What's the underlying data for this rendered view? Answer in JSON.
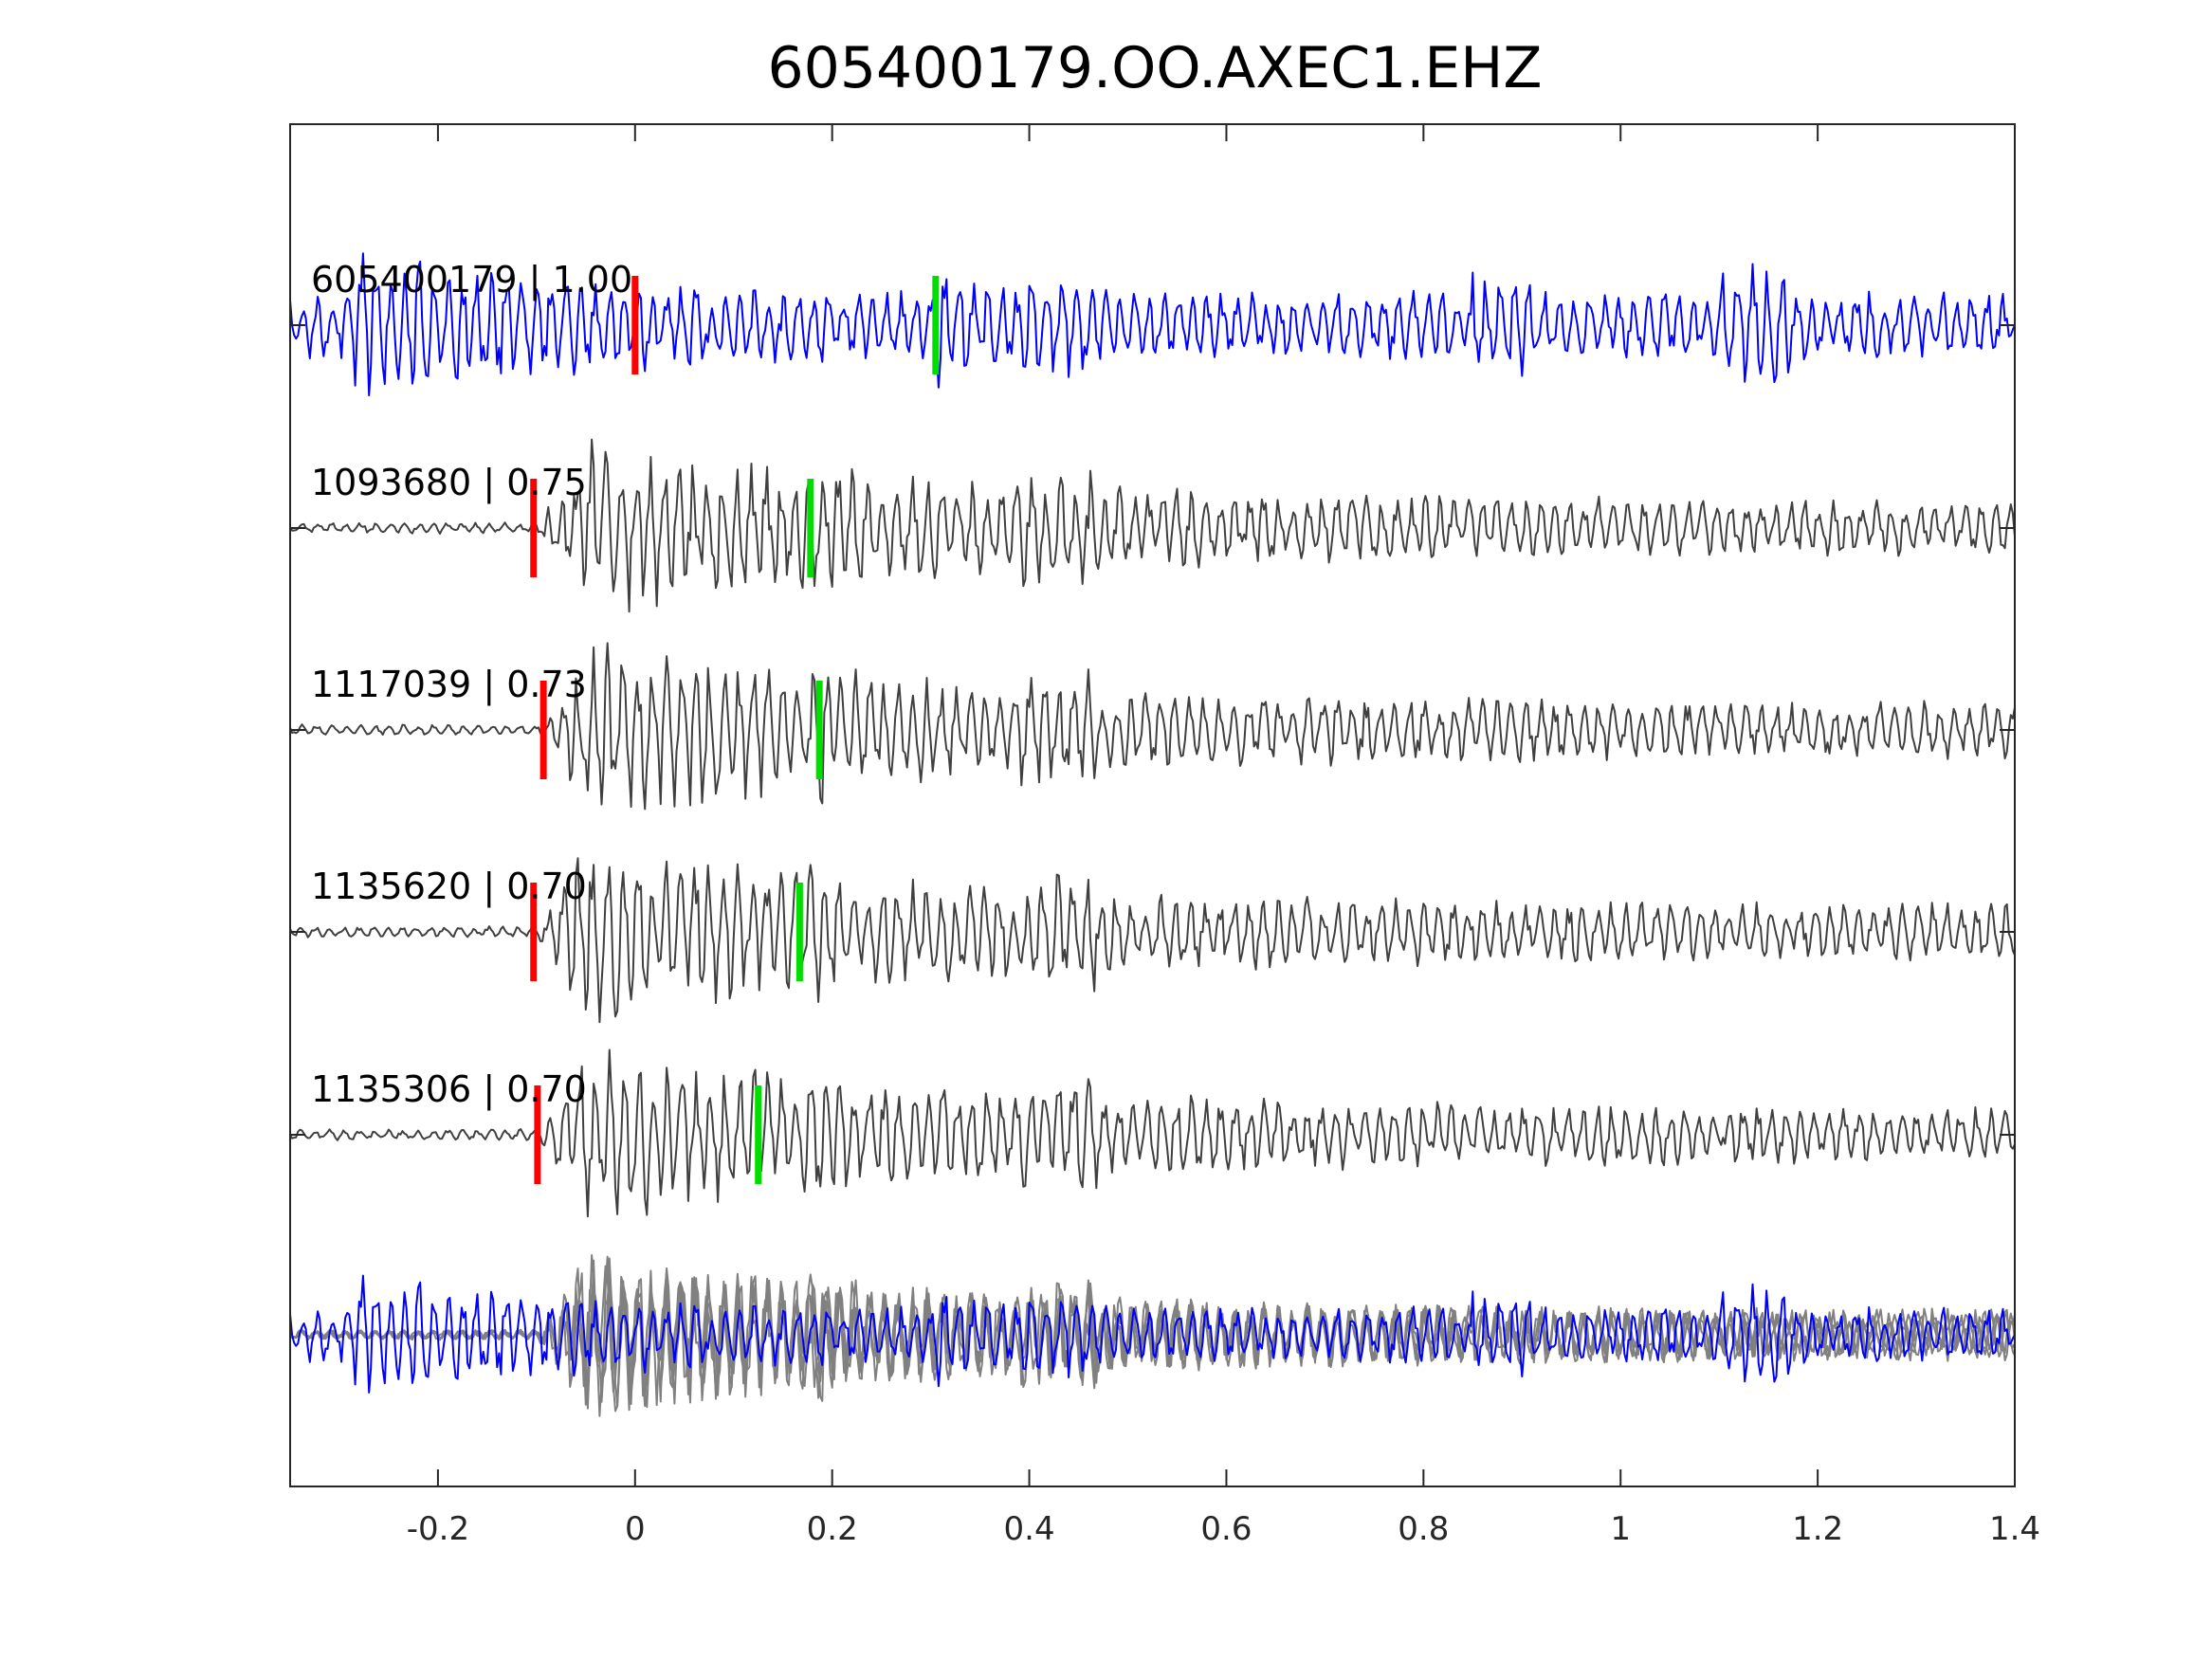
{
  "chart_data": {
    "type": "line",
    "title": "605400179.OO.AXEC1.EHZ",
    "xlabel": "",
    "ylabel": "",
    "xlim": [
      -0.35,
      1.4
    ],
    "xticks": [
      -0.2,
      0,
      0.2,
      0.4,
      0.6,
      0.8,
      1,
      1.2,
      1.4
    ],
    "xtick_labels": [
      "-0.2",
      "0",
      "0.2",
      "0.4",
      "0.6",
      "0.8",
      "1",
      "1.2",
      "1.4"
    ],
    "grid": false,
    "colors": {
      "template": "#0000ff",
      "match": "#404040",
      "overlay_match": "#808080",
      "p_pick": "#ff0000",
      "s_pick": "#00dd00",
      "axes": "#262626"
    },
    "traces": [
      {
        "event_id": "605400179",
        "correlation": "1.00",
        "label": "605400179 | 1.00",
        "p_pick": 0.0,
        "s_pick": 0.305
      },
      {
        "event_id": "1093680",
        "correlation": "0.75",
        "label": "1093680 | 0.75",
        "p_pick": -0.103,
        "s_pick": 0.178
      },
      {
        "event_id": "1117039",
        "correlation": "0.73",
        "label": "1117039 | 0.73",
        "p_pick": -0.093,
        "s_pick": 0.187
      },
      {
        "event_id": "1135620",
        "correlation": "0.70",
        "label": "1135620 | 0.70",
        "p_pick": -0.103,
        "s_pick": 0.167
      },
      {
        "event_id": "1135306",
        "correlation": "0.70",
        "label": "1135306 | 0.70",
        "p_pick": -0.099,
        "s_pick": 0.125
      }
    ],
    "bottom_panel": "overlay of template (blue) and matched waveforms (gray)"
  }
}
